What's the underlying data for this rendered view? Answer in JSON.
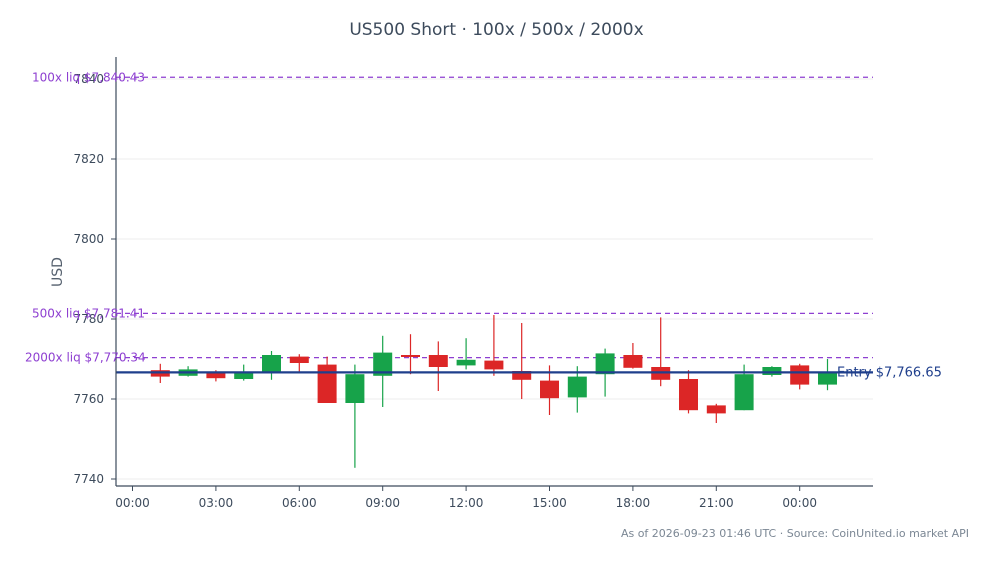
{
  "title": "US500 Short · 100x / 500x / 2000x",
  "footer": "As of 2026-09-23 01:46 UTC · Source: CoinUnited.io market API",
  "chart_data": {
    "type": "candlestick",
    "title": "US500 Short · 100x / 500x / 2000x",
    "xlabel": "",
    "ylabel": "USD",
    "ylim": [
      7738,
      7844
    ],
    "grid": true,
    "x_ticks": [
      "00:00",
      "03:00",
      "06:00",
      "09:00",
      "12:00",
      "15:00",
      "18:00",
      "21:00",
      "00:00"
    ],
    "y_ticks": [
      7740,
      7760,
      7780,
      7800,
      7820,
      7840
    ],
    "candles": [
      {
        "t": 1,
        "o": 7767.2,
        "h": 7768.8,
        "l": 7764.0,
        "c": 7765.6
      },
      {
        "t": 2,
        "o": 7765.8,
        "h": 7768.2,
        "l": 7765.6,
        "c": 7767.4
      },
      {
        "t": 3,
        "o": 7766.6,
        "h": 7767.2,
        "l": 7764.4,
        "c": 7765.2
      },
      {
        "t": 4,
        "o": 7765.0,
        "h": 7768.6,
        "l": 7764.6,
        "c": 7766.4
      },
      {
        "t": 5,
        "o": 7766.8,
        "h": 7772.0,
        "l": 7764.8,
        "c": 7771.0
      },
      {
        "t": 6,
        "o": 7770.6,
        "h": 7771.2,
        "l": 7766.6,
        "c": 7769.0
      },
      {
        "t": 7,
        "o": 7768.6,
        "h": 7770.6,
        "l": 7759.0,
        "c": 7759.0
      },
      {
        "t": 8,
        "o": 7759.0,
        "h": 7768.6,
        "l": 7742.8,
        "c": 7766.2
      },
      {
        "t": 9,
        "o": 7765.8,
        "h": 7775.8,
        "l": 7758.0,
        "c": 7771.6
      },
      {
        "t": 10,
        "o": 7771.0,
        "h": 7776.2,
        "l": 7766.2,
        "c": 7770.6
      },
      {
        "t": 11,
        "o": 7771.0,
        "h": 7774.4,
        "l": 7762.0,
        "c": 7768.0
      },
      {
        "t": 12,
        "o": 7768.4,
        "h": 7775.2,
        "l": 7767.4,
        "c": 7769.8
      },
      {
        "t": 13,
        "o": 7769.6,
        "h": 7781.0,
        "l": 7765.8,
        "c": 7767.4
      },
      {
        "t": 14,
        "o": 7767.0,
        "h": 7779.0,
        "l": 7760.0,
        "c": 7764.8
      },
      {
        "t": 15,
        "o": 7764.6,
        "h": 7768.4,
        "l": 7756.0,
        "c": 7760.2
      },
      {
        "t": 16,
        "o": 7760.4,
        "h": 7768.2,
        "l": 7756.6,
        "c": 7765.6
      },
      {
        "t": 17,
        "o": 7766.2,
        "h": 7772.6,
        "l": 7760.6,
        "c": 7771.4
      },
      {
        "t": 18,
        "o": 7771.0,
        "h": 7774.0,
        "l": 7767.6,
        "c": 7767.8
      },
      {
        "t": 19,
        "o": 7768.0,
        "h": 7780.4,
        "l": 7763.2,
        "c": 7764.8
      },
      {
        "t": 20,
        "o": 7765.0,
        "h": 7767.2,
        "l": 7756.4,
        "c": 7757.2
      },
      {
        "t": 21,
        "o": 7758.4,
        "h": 7758.8,
        "l": 7754.0,
        "c": 7756.4
      },
      {
        "t": 22,
        "o": 7757.2,
        "h": 7768.6,
        "l": 7757.2,
        "c": 7766.2
      },
      {
        "t": 23,
        "o": 7766.0,
        "h": 7768.2,
        "l": 7765.6,
        "c": 7768.0
      },
      {
        "t": 24,
        "o": 7768.4,
        "h": 7768.8,
        "l": 7762.4,
        "c": 7763.6
      },
      {
        "t": 25,
        "o": 7763.6,
        "h": 7770.0,
        "l": 7762.2,
        "c": 7766.4
      }
    ],
    "reference_lines": [
      {
        "label": "100x liq $7,840.43",
        "value": 7840.43,
        "style": "dashed",
        "color": "#8e3fd1"
      },
      {
        "label": "500x liq $7,781.41",
        "value": 7781.41,
        "style": "dashed",
        "color": "#8e3fd1"
      },
      {
        "label": "2000x liq $7,770.34",
        "value": 7770.34,
        "style": "dashed",
        "color": "#8e3fd1"
      },
      {
        "label": "Entry $7,766.65",
        "value": 7766.65,
        "style": "solid",
        "color": "#1f3f8c"
      }
    ],
    "colors": {
      "up": "#17a34a",
      "down": "#dc2626",
      "axis": "#3d4b5c",
      "grid": "#ececec"
    }
  }
}
